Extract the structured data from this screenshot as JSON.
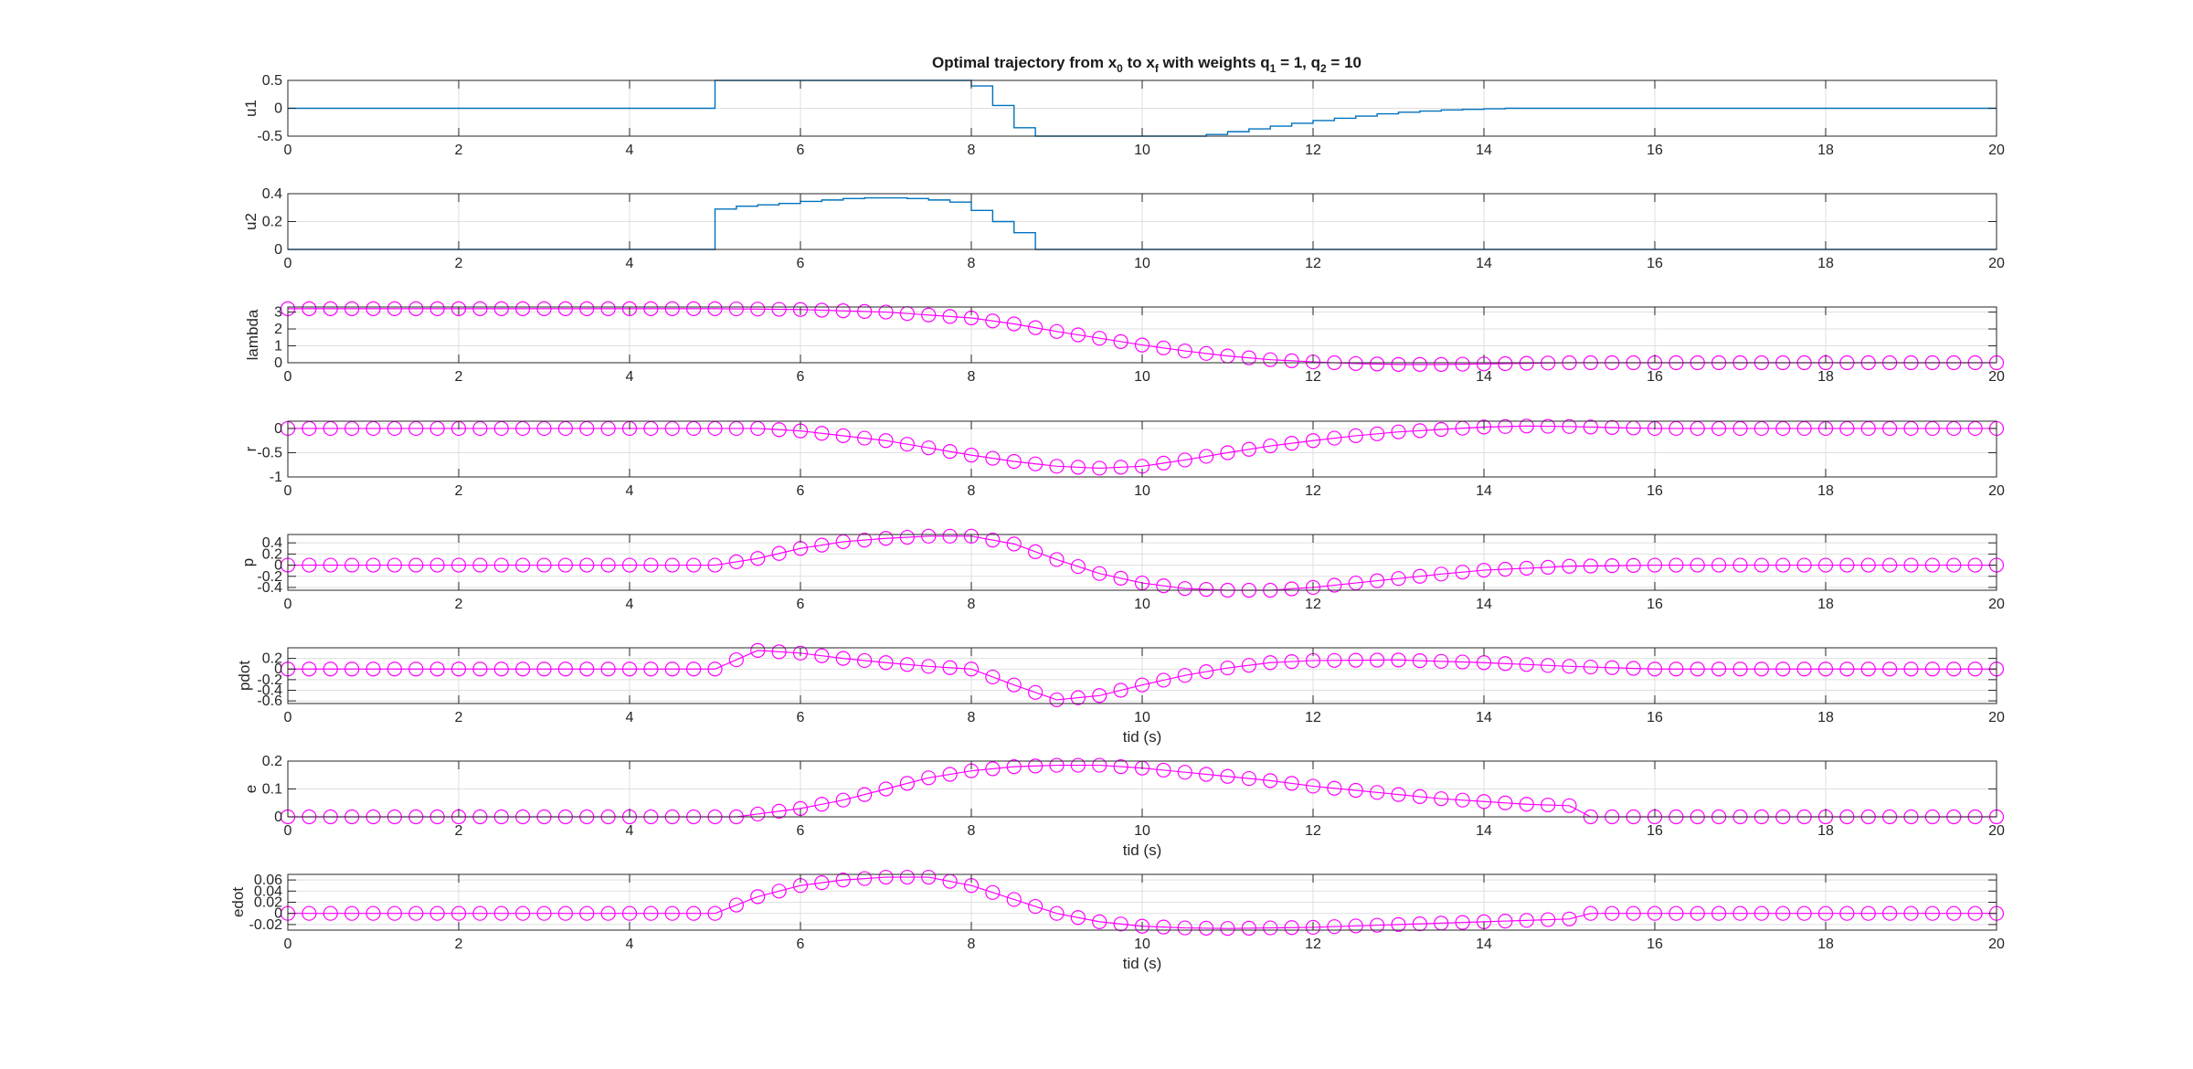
{
  "title": {
    "main": "Optimal trajectory from x",
    "sub0": "0",
    "mid": " to x",
    "subf": "f",
    "mid2": " with weights q",
    "sub1": "1",
    "eq1": " = 1, q",
    "sub2": "2",
    "eq2": " = 10"
  },
  "chart_data": [
    {
      "type": "line",
      "name_axis": "u1",
      "ylabel": "u1",
      "xlabel": "",
      "xlim": [
        0,
        20
      ],
      "ylim": [
        -0.5,
        0.5
      ],
      "xticks": [
        0,
        2,
        4,
        6,
        8,
        10,
        12,
        14,
        16,
        18,
        20
      ],
      "yticks": [
        -0.5,
        0,
        0.5
      ],
      "ytick_labels": [
        "-0.5",
        "0",
        "0.5"
      ],
      "grid": true,
      "style": "stairs",
      "color": "#0072BD",
      "x": [
        0,
        5,
        5.25,
        5.5,
        5.75,
        6,
        6.25,
        6.5,
        6.75,
        7,
        7.25,
        7.5,
        7.75,
        8,
        8.25,
        8.5,
        8.75,
        9,
        9.25,
        9.5,
        9.75,
        10,
        10.25,
        10.5,
        10.75,
        11,
        11.25,
        11.5,
        11.75,
        12,
        12.25,
        12.5,
        12.75,
        13,
        13.25,
        13.5,
        13.75,
        14,
        14.25,
        15,
        20
      ],
      "y": [
        0,
        0.5,
        0.5,
        0.5,
        0.5,
        0.5,
        0.5,
        0.5,
        0.5,
        0.5,
        0.5,
        0.5,
        0.5,
        0.4,
        0.05,
        -0.35,
        -0.5,
        -0.5,
        -0.5,
        -0.5,
        -0.5,
        -0.5,
        -0.5,
        -0.5,
        -0.47,
        -0.42,
        -0.37,
        -0.32,
        -0.27,
        -0.22,
        -0.18,
        -0.14,
        -0.1,
        -0.07,
        -0.05,
        -0.03,
        -0.02,
        -0.01,
        0,
        0,
        0
      ]
    },
    {
      "type": "line",
      "ylabel": "u2",
      "xlabel": "",
      "xlim": [
        0,
        20
      ],
      "ylim": [
        0,
        0.4
      ],
      "xticks": [
        0,
        2,
        4,
        6,
        8,
        10,
        12,
        14,
        16,
        18,
        20
      ],
      "yticks": [
        0,
        0.2,
        0.4
      ],
      "ytick_labels": [
        "0",
        "0.2",
        "0.4"
      ],
      "grid": true,
      "style": "stairs",
      "color": "#0072BD",
      "x": [
        0,
        5,
        5.25,
        5.5,
        5.75,
        6,
        6.25,
        6.5,
        6.75,
        7,
        7.25,
        7.5,
        7.75,
        8,
        8.25,
        8.5,
        8.75,
        20
      ],
      "y": [
        0,
        0.29,
        0.31,
        0.32,
        0.33,
        0.345,
        0.355,
        0.365,
        0.37,
        0.37,
        0.365,
        0.355,
        0.34,
        0.28,
        0.2,
        0.12,
        0,
        0
      ]
    },
    {
      "type": "line",
      "ylabel": "lambda",
      "xlabel": "",
      "xlim": [
        0,
        20
      ],
      "ylim": [
        0,
        3.3
      ],
      "xticks": [
        0,
        2,
        4,
        6,
        8,
        10,
        12,
        14,
        16,
        18,
        20
      ],
      "yticks": [
        0,
        1,
        2,
        3
      ],
      "ytick_labels": [
        "0",
        "1",
        "2",
        "3"
      ],
      "grid": true,
      "style": "markers",
      "color": "#FF00FF",
      "x": [
        0,
        2,
        4,
        5,
        6,
        7,
        8,
        8.5,
        9,
        9.5,
        10,
        10.5,
        11,
        11.5,
        12,
        12.5,
        13,
        13.5,
        14,
        15,
        16,
        18,
        20
      ],
      "y": [
        3.2,
        3.2,
        3.2,
        3.2,
        3.15,
        3.0,
        2.65,
        2.3,
        1.85,
        1.45,
        1.05,
        0.7,
        0.4,
        0.18,
        0.05,
        -0.05,
        -0.1,
        -0.1,
        -0.07,
        0,
        0,
        0,
        0
      ]
    },
    {
      "type": "line",
      "ylabel": "r",
      "xlabel": "",
      "xlim": [
        0,
        20
      ],
      "ylim": [
        -1,
        0.15
      ],
      "xticks": [
        0,
        2,
        4,
        6,
        8,
        10,
        12,
        14,
        16,
        18,
        20
      ],
      "yticks": [
        -1,
        -0.5,
        0
      ],
      "ytick_labels": [
        "-1",
        "-0.5",
        "0"
      ],
      "grid": true,
      "style": "markers",
      "color": "#FF00FF",
      "x": [
        0,
        2,
        4,
        5.5,
        6,
        7,
        8,
        8.5,
        9,
        9.5,
        10,
        10.5,
        11,
        11.5,
        12,
        12.5,
        13,
        13.5,
        14,
        14.5,
        15,
        16,
        18,
        20
      ],
      "y": [
        0,
        0,
        0,
        0,
        -0.05,
        -0.25,
        -0.55,
        -0.68,
        -0.78,
        -0.82,
        -0.78,
        -0.65,
        -0.5,
        -0.36,
        -0.25,
        -0.15,
        -0.07,
        -0.02,
        0.03,
        0.05,
        0.04,
        0,
        0,
        0
      ]
    },
    {
      "type": "line",
      "ylabel": "p",
      "xlabel": "",
      "xlim": [
        0,
        20
      ],
      "ylim": [
        -0.45,
        0.55
      ],
      "xticks": [
        0,
        2,
        4,
        6,
        8,
        10,
        12,
        14,
        16,
        18,
        20
      ],
      "yticks": [
        -0.4,
        -0.2,
        0,
        0.2,
        0.4
      ],
      "ytick_labels": [
        "-0.4",
        "-0.2",
        "0",
        "0.2",
        "0.4"
      ],
      "grid": true,
      "style": "markers",
      "color": "#FF00FF",
      "x": [
        0,
        2,
        4,
        5,
        5.5,
        6,
        6.5,
        7,
        7.5,
        8,
        8.5,
        9,
        9.5,
        10,
        10.5,
        11,
        11.5,
        12,
        12.5,
        13,
        13.5,
        14,
        15,
        16,
        18,
        20
      ],
      "y": [
        0,
        0,
        0,
        0,
        0.12,
        0.3,
        0.42,
        0.48,
        0.52,
        0.52,
        0.38,
        0.1,
        -0.15,
        -0.32,
        -0.42,
        -0.45,
        -0.45,
        -0.4,
        -0.32,
        -0.24,
        -0.16,
        -0.09,
        -0.02,
        0,
        0,
        0
      ]
    },
    {
      "type": "line",
      "ylabel": "pdot",
      "xlabel": "tid (s)",
      "xlim": [
        0,
        20
      ],
      "ylim": [
        -0.65,
        0.4
      ],
      "xticks": [
        0,
        2,
        4,
        6,
        8,
        10,
        12,
        14,
        16,
        18,
        20
      ],
      "yticks": [
        -0.6,
        -0.4,
        -0.2,
        0,
        0.2
      ],
      "ytick_labels": [
        "-0.6",
        "-0.4",
        "-0.2",
        "0",
        "0.2"
      ],
      "grid": true,
      "style": "markers",
      "color": "#FF00FF",
      "x": [
        0,
        2,
        4,
        5,
        5.5,
        6,
        6.5,
        7,
        7.5,
        8,
        8.5,
        9,
        9.5,
        10,
        10.5,
        11,
        11.5,
        12,
        13,
        14,
        15,
        16,
        18,
        20
      ],
      "y": [
        0,
        0,
        0,
        0,
        0.35,
        0.3,
        0.2,
        0.12,
        0.05,
        0,
        -0.3,
        -0.58,
        -0.5,
        -0.3,
        -0.12,
        0.02,
        0.12,
        0.16,
        0.17,
        0.12,
        0.05,
        0,
        0,
        0
      ]
    },
    {
      "type": "line",
      "ylabel": "e",
      "xlabel": "tid (s)",
      "xlim": [
        0,
        20
      ],
      "ylim": [
        0,
        0.2
      ],
      "xticks": [
        0,
        2,
        4,
        6,
        8,
        10,
        12,
        14,
        16,
        18,
        20
      ],
      "yticks": [
        0,
        0.1,
        0.2
      ],
      "ytick_labels": [
        "0",
        "0.1",
        "0.2"
      ],
      "grid": true,
      "style": "markers",
      "color": "#FF00FF",
      "x": [
        0,
        2,
        4,
        5.25,
        5.5,
        6,
        6.5,
        7,
        7.5,
        8,
        8.5,
        9,
        9.5,
        10,
        10.5,
        11,
        11.5,
        12,
        12.5,
        13,
        13.5,
        14,
        14.5,
        15,
        15.25,
        16,
        18,
        20
      ],
      "y": [
        0,
        0,
        0,
        0,
        0.01,
        0.03,
        0.06,
        0.1,
        0.14,
        0.165,
        0.18,
        0.185,
        0.185,
        0.175,
        0.16,
        0.145,
        0.13,
        0.11,
        0.095,
        0.08,
        0.065,
        0.055,
        0.045,
        0.04,
        0,
        0,
        0,
        0
      ]
    },
    {
      "type": "line",
      "ylabel": "edot",
      "xlabel": "tid (s)",
      "xlim": [
        0,
        20
      ],
      "ylim": [
        -0.03,
        0.07
      ],
      "xticks": [
        0,
        2,
        4,
        6,
        8,
        10,
        12,
        14,
        16,
        18,
        20
      ],
      "yticks": [
        -0.02,
        0,
        0.02,
        0.04,
        0.06
      ],
      "ytick_labels": [
        "-0.02",
        "0",
        "0.02",
        "0.04",
        "0.06"
      ],
      "grid": true,
      "style": "markers",
      "color": "#FF00FF",
      "x": [
        0,
        2,
        4,
        5,
        5.5,
        6,
        6.5,
        7,
        7.5,
        8,
        8.5,
        9,
        9.5,
        10,
        10.5,
        11,
        11.5,
        12,
        13,
        14,
        15,
        15.25,
        16,
        18,
        20
      ],
      "y": [
        0,
        0,
        0,
        0,
        0.03,
        0.05,
        0.06,
        0.065,
        0.065,
        0.05,
        0.025,
        0,
        -0.015,
        -0.023,
        -0.026,
        -0.027,
        -0.026,
        -0.025,
        -0.02,
        -0.015,
        -0.01,
        0,
        0,
        0,
        0
      ]
    }
  ]
}
